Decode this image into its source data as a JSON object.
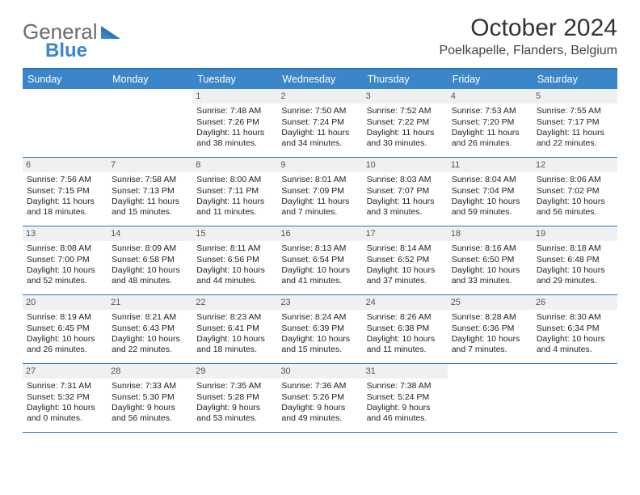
{
  "brand": {
    "word1": "General",
    "word2": "Blue"
  },
  "title": "October 2024",
  "location": "Poelkapelle, Flanders, Belgium",
  "dows": [
    "Sunday",
    "Monday",
    "Tuesday",
    "Wednesday",
    "Thursday",
    "Friday",
    "Saturday"
  ],
  "colors": {
    "header_bar": "#3a86c8",
    "rule": "#2f78b5",
    "daynum_bg": "#eef0f2",
    "text": "#222222",
    "title": "#333333",
    "logo_gray": "#6b6b6b",
    "logo_blue": "#3a86c8",
    "background": "#ffffff"
  },
  "weeks": [
    [
      {
        "n": "",
        "empty": true
      },
      {
        "n": "",
        "empty": true
      },
      {
        "n": "1",
        "sr": "7:48 AM",
        "ss": "7:26 PM",
        "dl": "11 hours and 38 minutes."
      },
      {
        "n": "2",
        "sr": "7:50 AM",
        "ss": "7:24 PM",
        "dl": "11 hours and 34 minutes."
      },
      {
        "n": "3",
        "sr": "7:52 AM",
        "ss": "7:22 PM",
        "dl": "11 hours and 30 minutes."
      },
      {
        "n": "4",
        "sr": "7:53 AM",
        "ss": "7:20 PM",
        "dl": "11 hours and 26 minutes."
      },
      {
        "n": "5",
        "sr": "7:55 AM",
        "ss": "7:17 PM",
        "dl": "11 hours and 22 minutes."
      }
    ],
    [
      {
        "n": "6",
        "sr": "7:56 AM",
        "ss": "7:15 PM",
        "dl": "11 hours and 18 minutes."
      },
      {
        "n": "7",
        "sr": "7:58 AM",
        "ss": "7:13 PM",
        "dl": "11 hours and 15 minutes."
      },
      {
        "n": "8",
        "sr": "8:00 AM",
        "ss": "7:11 PM",
        "dl": "11 hours and 11 minutes."
      },
      {
        "n": "9",
        "sr": "8:01 AM",
        "ss": "7:09 PM",
        "dl": "11 hours and 7 minutes."
      },
      {
        "n": "10",
        "sr": "8:03 AM",
        "ss": "7:07 PM",
        "dl": "11 hours and 3 minutes."
      },
      {
        "n": "11",
        "sr": "8:04 AM",
        "ss": "7:04 PM",
        "dl": "10 hours and 59 minutes."
      },
      {
        "n": "12",
        "sr": "8:06 AM",
        "ss": "7:02 PM",
        "dl": "10 hours and 56 minutes."
      }
    ],
    [
      {
        "n": "13",
        "sr": "8:08 AM",
        "ss": "7:00 PM",
        "dl": "10 hours and 52 minutes."
      },
      {
        "n": "14",
        "sr": "8:09 AM",
        "ss": "6:58 PM",
        "dl": "10 hours and 48 minutes."
      },
      {
        "n": "15",
        "sr": "8:11 AM",
        "ss": "6:56 PM",
        "dl": "10 hours and 44 minutes."
      },
      {
        "n": "16",
        "sr": "8:13 AM",
        "ss": "6:54 PM",
        "dl": "10 hours and 41 minutes."
      },
      {
        "n": "17",
        "sr": "8:14 AM",
        "ss": "6:52 PM",
        "dl": "10 hours and 37 minutes."
      },
      {
        "n": "18",
        "sr": "8:16 AM",
        "ss": "6:50 PM",
        "dl": "10 hours and 33 minutes."
      },
      {
        "n": "19",
        "sr": "8:18 AM",
        "ss": "6:48 PM",
        "dl": "10 hours and 29 minutes."
      }
    ],
    [
      {
        "n": "20",
        "sr": "8:19 AM",
        "ss": "6:45 PM",
        "dl": "10 hours and 26 minutes."
      },
      {
        "n": "21",
        "sr": "8:21 AM",
        "ss": "6:43 PM",
        "dl": "10 hours and 22 minutes."
      },
      {
        "n": "22",
        "sr": "8:23 AM",
        "ss": "6:41 PM",
        "dl": "10 hours and 18 minutes."
      },
      {
        "n": "23",
        "sr": "8:24 AM",
        "ss": "6:39 PM",
        "dl": "10 hours and 15 minutes."
      },
      {
        "n": "24",
        "sr": "8:26 AM",
        "ss": "6:38 PM",
        "dl": "10 hours and 11 minutes."
      },
      {
        "n": "25",
        "sr": "8:28 AM",
        "ss": "6:36 PM",
        "dl": "10 hours and 7 minutes."
      },
      {
        "n": "26",
        "sr": "8:30 AM",
        "ss": "6:34 PM",
        "dl": "10 hours and 4 minutes."
      }
    ],
    [
      {
        "n": "27",
        "sr": "7:31 AM",
        "ss": "5:32 PM",
        "dl": "10 hours and 0 minutes."
      },
      {
        "n": "28",
        "sr": "7:33 AM",
        "ss": "5:30 PM",
        "dl": "9 hours and 56 minutes."
      },
      {
        "n": "29",
        "sr": "7:35 AM",
        "ss": "5:28 PM",
        "dl": "9 hours and 53 minutes."
      },
      {
        "n": "30",
        "sr": "7:36 AM",
        "ss": "5:26 PM",
        "dl": "9 hours and 49 minutes."
      },
      {
        "n": "31",
        "sr": "7:38 AM",
        "ss": "5:24 PM",
        "dl": "9 hours and 46 minutes."
      },
      {
        "n": "",
        "empty": true
      },
      {
        "n": "",
        "empty": true
      }
    ]
  ],
  "labels": {
    "sunrise": "Sunrise:",
    "sunset": "Sunset:",
    "daylight": "Daylight:"
  }
}
